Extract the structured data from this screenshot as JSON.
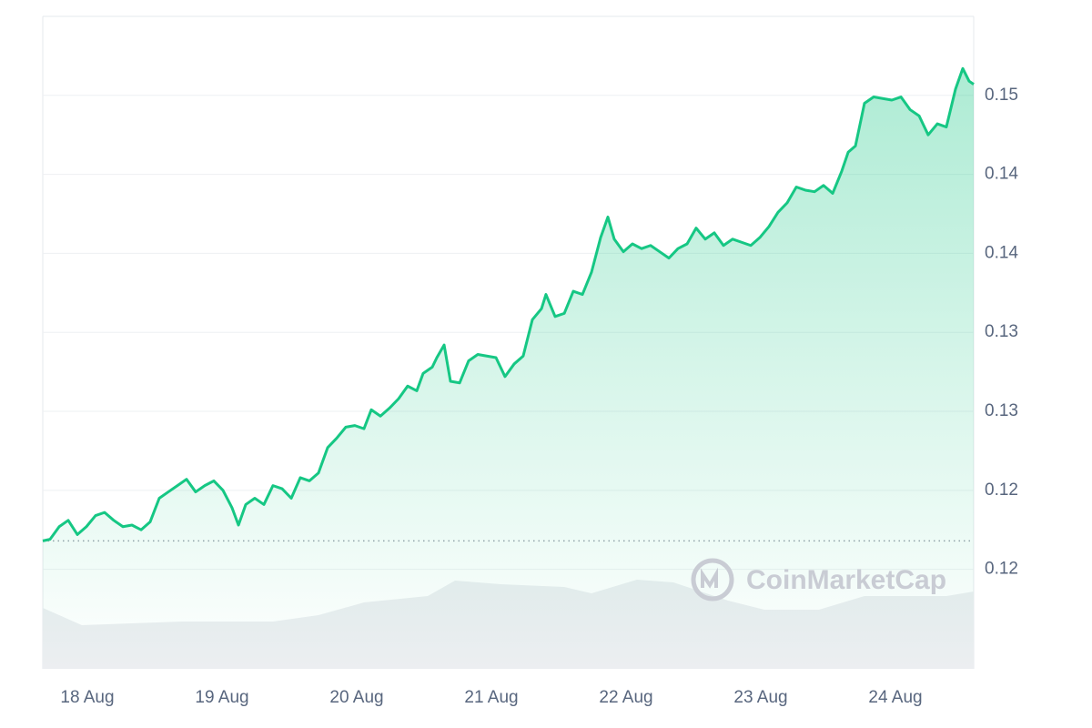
{
  "chart_data": {
    "type": "area",
    "watermark": "CoinMarketCap",
    "xlim": [
      -0.331,
      6.581
    ],
    "xticks": [
      {
        "value": 0,
        "label": "18 Aug"
      },
      {
        "value": 1,
        "label": "19 Aug"
      },
      {
        "value": 2,
        "label": "20 Aug"
      },
      {
        "value": 3,
        "label": "21 Aug"
      },
      {
        "value": 4,
        "label": "22 Aug"
      },
      {
        "value": 5,
        "label": "23 Aug"
      },
      {
        "value": 6,
        "label": "24 Aug"
      }
    ],
    "ylim": [
      0.1112,
      0.1525
    ],
    "yticks": [
      {
        "value": 0.1175,
        "label": "0.12"
      },
      {
        "value": 0.1225,
        "label": "0.12"
      },
      {
        "value": 0.1275,
        "label": "0.13"
      },
      {
        "value": 0.1325,
        "label": "0.13"
      },
      {
        "value": 0.1375,
        "label": "0.14"
      },
      {
        "value": 0.1425,
        "label": "0.14"
      },
      {
        "value": 0.1475,
        "label": "0.15"
      }
    ],
    "grid": true,
    "reference_line": 0.1193,
    "series": [
      {
        "color": "#16c784",
        "x": [
          -0.331,
          -0.277,
          -0.209,
          -0.142,
          -0.074,
          -0.007,
          0.061,
          0.128,
          0.196,
          0.264,
          0.331,
          0.399,
          0.466,
          0.534,
          0.601,
          0.669,
          0.736,
          0.804,
          0.872,
          0.939,
          1.007,
          1.074,
          1.122,
          1.176,
          1.243,
          1.311,
          1.378,
          1.446,
          1.514,
          1.581,
          1.649,
          1.716,
          1.784,
          1.851,
          1.919,
          1.986,
          2.054,
          2.108,
          2.176,
          2.243,
          2.311,
          2.378,
          2.446,
          2.493,
          2.561,
          2.595,
          2.649,
          2.696,
          2.764,
          2.831,
          2.899,
          2.966,
          3.034,
          3.101,
          3.169,
          3.236,
          3.304,
          3.372,
          3.405,
          3.473,
          3.541,
          3.608,
          3.676,
          3.743,
          3.811,
          3.865,
          3.912,
          3.98,
          4.047,
          4.115,
          4.182,
          4.25,
          4.318,
          4.385,
          4.453,
          4.52,
          4.588,
          4.655,
          4.723,
          4.791,
          4.858,
          4.926,
          4.993,
          5.061,
          5.128,
          5.196,
          5.264,
          5.331,
          5.399,
          5.466,
          5.534,
          5.601,
          5.649,
          5.703,
          5.77,
          5.838,
          5.905,
          5.973,
          6.041,
          6.108,
          6.176,
          6.243,
          6.311,
          6.378,
          6.446,
          6.5,
          6.547,
          6.581
        ],
        "values": [
          0.1193,
          0.1194,
          0.1202,
          0.1206,
          0.1197,
          0.1202,
          0.1209,
          0.1211,
          0.1206,
          0.1202,
          0.1203,
          0.12,
          0.1205,
          0.122,
          0.1224,
          0.1228,
          0.1232,
          0.1224,
          0.1228,
          0.1231,
          0.1225,
          0.1214,
          0.1203,
          0.1216,
          0.122,
          0.1216,
          0.1228,
          0.1226,
          0.122,
          0.1233,
          0.1231,
          0.1236,
          0.1252,
          0.1258,
          0.1265,
          0.1266,
          0.1264,
          0.1276,
          0.1272,
          0.1277,
          0.1283,
          0.1291,
          0.1288,
          0.1299,
          0.1303,
          0.1309,
          0.1317,
          0.1294,
          0.1293,
          0.1307,
          0.1311,
          0.131,
          0.1309,
          0.1297,
          0.1305,
          0.131,
          0.1333,
          0.134,
          0.1349,
          0.1335,
          0.1337,
          0.1351,
          0.1349,
          0.1363,
          0.1385,
          0.1398,
          0.1384,
          0.1376,
          0.1381,
          0.1378,
          0.138,
          0.1376,
          0.1372,
          0.1378,
          0.1381,
          0.1391,
          0.1384,
          0.1388,
          0.138,
          0.1384,
          0.1382,
          0.138,
          0.1385,
          0.1392,
          0.1401,
          0.1407,
          0.1417,
          0.1415,
          0.1414,
          0.1418,
          0.1413,
          0.1427,
          0.1439,
          0.1443,
          0.147,
          0.1474,
          0.1473,
          0.1472,
          0.1474,
          0.1466,
          0.1462,
          0.145,
          0.1457,
          0.1455,
          0.1479,
          0.1492,
          0.1484,
          0.1482
        ]
      }
    ],
    "volume": {
      "color": "#eceef1",
      "ylim": [
        0,
        100
      ],
      "x": [
        -0.331,
        -0.041,
        0.703,
        1.378,
        1.716,
        2.054,
        2.527,
        2.73,
        3.068,
        3.541,
        3.743,
        4.081,
        4.351,
        4.757,
        5.027,
        5.432,
        5.77,
        6.108,
        6.378,
        6.581
      ],
      "values": [
        67,
        48,
        52,
        52,
        59,
        73,
        80,
        97,
        93,
        90,
        83,
        98,
        95,
        75,
        65,
        65,
        80,
        80,
        80,
        85
      ]
    }
  }
}
